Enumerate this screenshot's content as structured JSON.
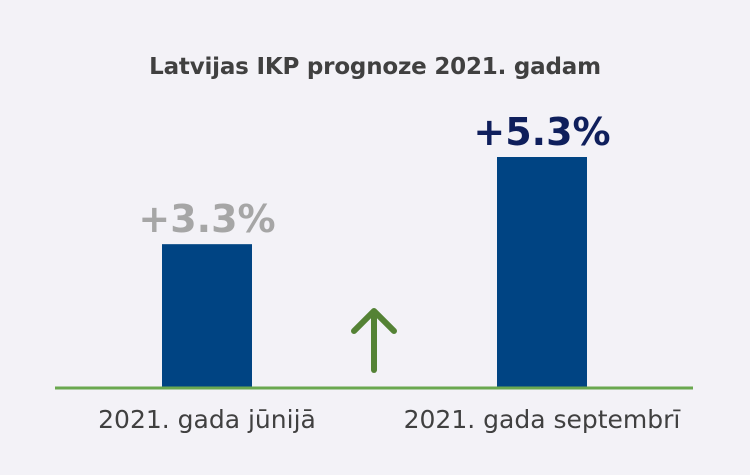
{
  "chart_data": {
    "type": "bar",
    "title": "Latvijas IKP prognoze 2021. gadam",
    "xlabel": "",
    "ylabel": "",
    "ylim": [
      0,
      5.3
    ],
    "categories": [
      "2021. gada jūnijā",
      "2021. gada septembrī"
    ],
    "values": [
      3.3,
      5.3
    ],
    "data_labels": [
      "+3.3%",
      "+5.3%"
    ],
    "grid": false,
    "legend": "none",
    "colors": {
      "bar": "#004483",
      "baseline": "#6aa84f",
      "arrow": "#548235",
      "label_past": "#a6a6a6",
      "label_current": "#0f1f5c",
      "category_text": "#404040"
    },
    "annotations": [
      {
        "type": "arrow",
        "direction": "up",
        "icon": "arrow-up-icon"
      }
    ]
  }
}
